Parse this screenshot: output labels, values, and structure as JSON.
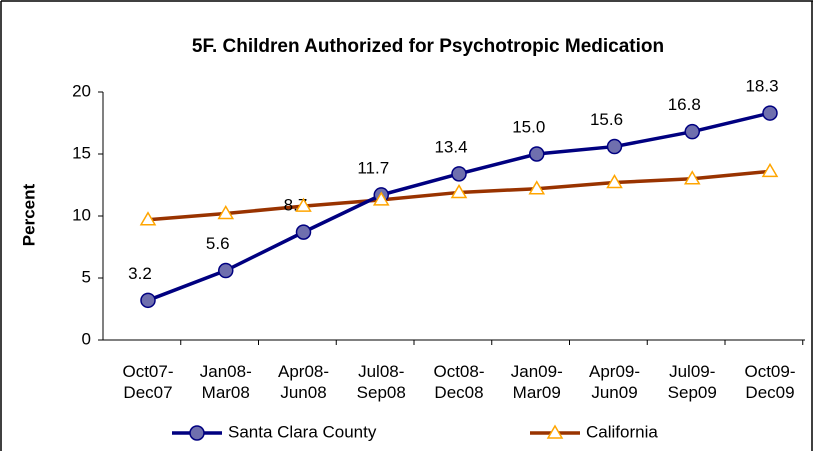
{
  "chart_data": {
    "type": "line",
    "title": "5F. Children Authorized for Psychotropic Medication",
    "y_label": "Percent",
    "categories": [
      "Oct07-Dec07",
      "Jan08-Mar08",
      "Apr08-Jun08",
      "Jul08-Sep08",
      "Oct08-Dec08",
      "Jan09-Mar09",
      "Apr09-Jun09",
      "Jul09-Sep09",
      "Oct09-Dec09"
    ],
    "series": [
      {
        "name": "Santa Clara County",
        "color": "#000080",
        "marker_color": "#6f6fae",
        "marker": "circle",
        "values": [
          3.2,
          5.6,
          8.7,
          11.7,
          13.4,
          15.0,
          15.6,
          16.8,
          18.3
        ],
        "value_labels": [
          "3.2",
          "5.6",
          "8.7",
          "11.7",
          "13.4",
          "15.0",
          "15.6",
          "16.8",
          "18.3"
        ]
      },
      {
        "name": "California",
        "color": "#993300",
        "marker_color": "#ffa500",
        "marker": "triangle",
        "values": [
          9.7,
          10.2,
          10.8,
          11.3,
          11.9,
          12.2,
          12.7,
          13.0,
          13.6
        ]
      }
    ],
    "ylim": [
      0,
      20
    ],
    "yticks": [
      0,
      5,
      10,
      15,
      20
    ],
    "grid": false,
    "legend": "bottom"
  }
}
